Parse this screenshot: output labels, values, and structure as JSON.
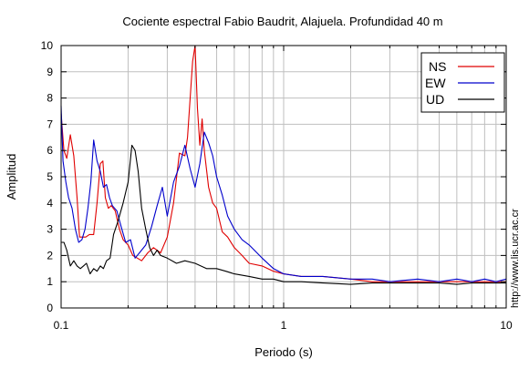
{
  "chart_data": {
    "type": "line",
    "title": "Cociente espectral Fabio Baudrit, Alajuela. Profundidad 40 m",
    "xlabel": "Periodo (s)",
    "ylabel": "Amplitud",
    "x_scale": "log",
    "xlim": [
      0.1,
      10
    ],
    "ylim": [
      0,
      10
    ],
    "grid": true,
    "legend_position": "top-right",
    "x_tick_values": [
      0.1,
      1,
      10
    ],
    "x_tick_labels": [
      "0.1",
      "1",
      "10"
    ],
    "y_tick_values": [
      0,
      1,
      2,
      3,
      4,
      5,
      6,
      7,
      8,
      9,
      10
    ],
    "y_tick_labels": [
      "0",
      "1",
      "2",
      "3",
      "4",
      "5",
      "6",
      "7",
      "8",
      "9",
      "10"
    ],
    "series": [
      {
        "name": "NS",
        "color": "#e00000",
        "x": [
          0.1,
          0.103,
          0.106,
          0.11,
          0.114,
          0.118,
          0.121,
          0.125,
          0.129,
          0.134,
          0.14,
          0.145,
          0.15,
          0.154,
          0.158,
          0.163,
          0.168,
          0.175,
          0.183,
          0.19,
          0.2,
          0.21,
          0.22,
          0.23,
          0.245,
          0.26,
          0.28,
          0.3,
          0.32,
          0.34,
          0.36,
          0.37,
          0.38,
          0.39,
          0.4,
          0.41,
          0.42,
          0.43,
          0.44,
          0.46,
          0.48,
          0.5,
          0.53,
          0.56,
          0.6,
          0.65,
          0.7,
          0.8,
          0.9,
          1.0,
          1.2,
          1.5,
          2,
          2.5,
          3,
          4,
          5,
          6,
          7,
          8,
          9,
          10
        ],
        "y": [
          7.4,
          6.0,
          5.7,
          6.6,
          5.8,
          4.2,
          2.7,
          2.7,
          2.7,
          2.8,
          2.8,
          4.0,
          5.5,
          5.6,
          4.2,
          3.8,
          3.9,
          3.7,
          3.0,
          2.6,
          2.4,
          2.0,
          1.9,
          1.8,
          2.1,
          2.3,
          2.1,
          2.7,
          4.0,
          5.9,
          5.8,
          6.5,
          8.0,
          9.4,
          10.0,
          7.6,
          6.2,
          7.2,
          6.0,
          4.6,
          4.0,
          3.8,
          2.9,
          2.7,
          2.3,
          2.0,
          1.7,
          1.6,
          1.4,
          1.3,
          1.2,
          1.2,
          1.1,
          1.0,
          1.0,
          1.0,
          1.0,
          1.0,
          1.0,
          1.0,
          1.0,
          1.0
        ]
      },
      {
        "name": "EW",
        "color": "#0000cc",
        "x": [
          0.1,
          0.102,
          0.105,
          0.108,
          0.112,
          0.116,
          0.12,
          0.124,
          0.128,
          0.132,
          0.136,
          0.14,
          0.145,
          0.15,
          0.155,
          0.16,
          0.165,
          0.17,
          0.178,
          0.186,
          0.195,
          0.205,
          0.215,
          0.225,
          0.24,
          0.255,
          0.27,
          0.285,
          0.3,
          0.32,
          0.34,
          0.36,
          0.38,
          0.4,
          0.42,
          0.44,
          0.46,
          0.48,
          0.5,
          0.53,
          0.56,
          0.6,
          0.65,
          0.7,
          0.8,
          0.9,
          1.0,
          1.2,
          1.5,
          2,
          2.5,
          3,
          4,
          5,
          6,
          7,
          8,
          9,
          10
        ],
        "y": [
          7.7,
          5.6,
          4.8,
          4.2,
          3.8,
          3.0,
          2.5,
          2.6,
          3.0,
          3.8,
          4.8,
          6.4,
          5.6,
          5.2,
          4.6,
          4.7,
          4.2,
          3.9,
          3.7,
          3.1,
          2.5,
          2.6,
          1.9,
          2.1,
          2.4,
          3.1,
          3.9,
          4.6,
          3.5,
          4.8,
          5.4,
          6.2,
          5.3,
          4.6,
          5.5,
          6.7,
          6.3,
          5.8,
          5.0,
          4.3,
          3.5,
          3.0,
          2.6,
          2.4,
          1.9,
          1.5,
          1.3,
          1.2,
          1.2,
          1.1,
          1.1,
          1.0,
          1.1,
          1.0,
          1.1,
          1.0,
          1.1,
          1.0,
          1.1
        ]
      },
      {
        "name": "UD",
        "color": "#000000",
        "x": [
          0.1,
          0.103,
          0.106,
          0.11,
          0.114,
          0.118,
          0.122,
          0.126,
          0.13,
          0.135,
          0.14,
          0.145,
          0.15,
          0.155,
          0.16,
          0.166,
          0.172,
          0.18,
          0.19,
          0.2,
          0.208,
          0.215,
          0.222,
          0.23,
          0.24,
          0.25,
          0.26,
          0.27,
          0.28,
          0.3,
          0.33,
          0.36,
          0.4,
          0.45,
          0.5,
          0.55,
          0.6,
          0.7,
          0.8,
          0.9,
          1.0,
          1.2,
          1.5,
          2,
          2.5,
          3,
          4,
          5,
          6,
          7,
          8,
          9,
          10
        ],
        "y": [
          2.5,
          2.5,
          2.2,
          1.6,
          1.8,
          1.6,
          1.5,
          1.6,
          1.7,
          1.3,
          1.5,
          1.4,
          1.6,
          1.5,
          1.8,
          1.9,
          2.8,
          3.3,
          4.0,
          4.8,
          6.2,
          6.0,
          5.2,
          3.8,
          3.0,
          2.3,
          2.0,
          2.2,
          2.0,
          1.9,
          1.7,
          1.8,
          1.7,
          1.5,
          1.5,
          1.4,
          1.3,
          1.2,
          1.1,
          1.1,
          1.0,
          1.0,
          0.95,
          0.9,
          0.95,
          0.95,
          0.95,
          0.95,
          0.9,
          0.95,
          0.95,
          0.95,
          0.95
        ]
      }
    ],
    "side_note": "http://www.lis.ucr.ac.cr"
  }
}
